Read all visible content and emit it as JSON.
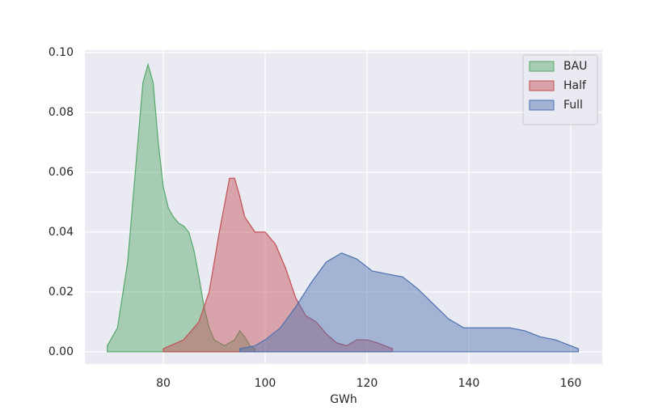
{
  "chart_data": {
    "type": "area",
    "xlabel": "GWh",
    "xlim": [
      64.6,
      166.2
    ],
    "ylim": [
      -0.0041,
      0.1008
    ],
    "xticks": [
      80,
      100,
      120,
      140,
      160
    ],
    "yticks": [
      {
        "value": 0,
        "label": "0.00"
      },
      {
        "value": 0.02,
        "label": "0.02"
      },
      {
        "value": 0.04,
        "label": "0.04"
      },
      {
        "value": 0.06,
        "label": "0.06"
      },
      {
        "value": 0.08,
        "label": "0.08"
      },
      {
        "value": 0.1,
        "label": "0.10"
      }
    ],
    "grid": true,
    "legend": "upper right",
    "series": [
      {
        "name": "BAU",
        "color": "#55a868",
        "x": [
          69,
          71,
          73,
          75,
          76,
          77,
          78,
          79,
          80,
          81,
          82,
          83,
          84,
          85,
          86,
          87,
          88,
          89,
          90,
          92,
          94,
          95,
          96,
          97,
          98
        ],
        "values": [
          0.002,
          0.008,
          0.03,
          0.07,
          0.09,
          0.096,
          0.09,
          0.07,
          0.055,
          0.048,
          0.045,
          0.043,
          0.042,
          0.04,
          0.034,
          0.025,
          0.015,
          0.008,
          0.004,
          0.002,
          0.004,
          0.007,
          0.005,
          0.002,
          0.001
        ]
      },
      {
        "name": "Half",
        "color": "#c44e52",
        "x": [
          80,
          84,
          87,
          89,
          91,
          93,
          94,
          95,
          96,
          98,
          100,
          102,
          104,
          106,
          108,
          110,
          112,
          114,
          116,
          118,
          120,
          122,
          125
        ],
        "values": [
          0.001,
          0.004,
          0.01,
          0.02,
          0.04,
          0.058,
          0.058,
          0.052,
          0.045,
          0.04,
          0.04,
          0.036,
          0.028,
          0.018,
          0.012,
          0.01,
          0.006,
          0.003,
          0.002,
          0.004,
          0.004,
          0.003,
          0.001
        ]
      },
      {
        "name": "Full",
        "color": "#4c72b0",
        "x": [
          95,
          98,
          100,
          103,
          106,
          109,
          112,
          115,
          118,
          121,
          124,
          127,
          130,
          133,
          136,
          139,
          142,
          145,
          148,
          151,
          154,
          157,
          160,
          161.5
        ],
        "values": [
          0.001,
          0.002,
          0.004,
          0.008,
          0.015,
          0.023,
          0.03,
          0.033,
          0.031,
          0.027,
          0.026,
          0.025,
          0.021,
          0.016,
          0.011,
          0.008,
          0.008,
          0.008,
          0.008,
          0.007,
          0.005,
          0.004,
          0.002,
          0.001
        ]
      }
    ]
  }
}
